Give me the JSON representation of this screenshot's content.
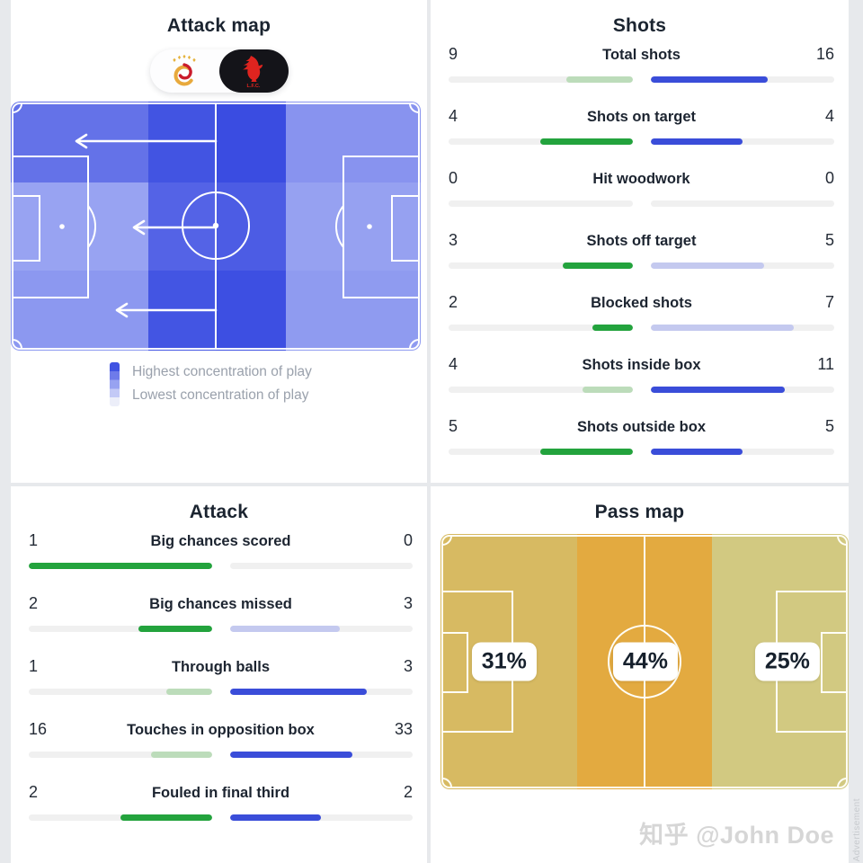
{
  "teams": {
    "home": "Galatasaray",
    "away": "Liverpool"
  },
  "colors": {
    "home_strong": "#23a33d",
    "home_light": "#bcdcba",
    "away_strong": "#3a4dd9",
    "away_light": "#c4c9ef",
    "track": "#f0f0f0",
    "heat_high": "#4053e2"
  },
  "attack_map": {
    "title": "Attack map",
    "legend": {
      "high": "Highest concentration of play",
      "low": "Lowest concentration of play"
    },
    "heatmap_colors": [
      [
        "#6472e8",
        "#4254e2",
        "#3a4ce1",
        "#8893ef"
      ],
      [
        "#98a3f2",
        "#5463e6",
        "#4c5ce4",
        "#96a1f1"
      ],
      [
        "#8c98f0",
        "#4355e3",
        "#3d4fe2",
        "#8f9bf0"
      ]
    ]
  },
  "shots": {
    "title": "Shots",
    "rows": [
      {
        "label": "Total shots",
        "home": {
          "value": "9",
          "pct": 36,
          "style": "light"
        },
        "away": {
          "value": "16",
          "pct": 64,
          "style": "strong"
        }
      },
      {
        "label": "Shots on target",
        "home": {
          "value": "4",
          "pct": 50,
          "style": "strong"
        },
        "away": {
          "value": "4",
          "pct": 50,
          "style": "strong"
        }
      },
      {
        "label": "Hit woodwork",
        "home": {
          "value": "0",
          "pct": 0,
          "style": "none"
        },
        "away": {
          "value": "0",
          "pct": 0,
          "style": "none"
        }
      },
      {
        "label": "Shots off target",
        "home": {
          "value": "3",
          "pct": 38,
          "style": "strong"
        },
        "away": {
          "value": "5",
          "pct": 62,
          "style": "light"
        }
      },
      {
        "label": "Blocked shots",
        "home": {
          "value": "2",
          "pct": 22,
          "style": "strong"
        },
        "away": {
          "value": "7",
          "pct": 78,
          "style": "light"
        }
      },
      {
        "label": "Shots inside box",
        "home": {
          "value": "4",
          "pct": 27,
          "style": "light"
        },
        "away": {
          "value": "11",
          "pct": 73,
          "style": "strong"
        }
      },
      {
        "label": "Shots outside box",
        "home": {
          "value": "5",
          "pct": 50,
          "style": "strong"
        },
        "away": {
          "value": "5",
          "pct": 50,
          "style": "strong"
        }
      }
    ]
  },
  "attack": {
    "title": "Attack",
    "rows": [
      {
        "label": "Big chances scored",
        "home": {
          "value": "1",
          "pct": 100,
          "style": "strong"
        },
        "away": {
          "value": "0",
          "pct": 0,
          "style": "none"
        }
      },
      {
        "label": "Big chances missed",
        "home": {
          "value": "2",
          "pct": 40,
          "style": "strong"
        },
        "away": {
          "value": "3",
          "pct": 60,
          "style": "light"
        }
      },
      {
        "label": "Through balls",
        "home": {
          "value": "1",
          "pct": 25,
          "style": "light"
        },
        "away": {
          "value": "3",
          "pct": 75,
          "style": "strong"
        }
      },
      {
        "label": "Touches in opposition box",
        "home": {
          "value": "16",
          "pct": 33,
          "style": "light"
        },
        "away": {
          "value": "33",
          "pct": 67,
          "style": "strong"
        }
      },
      {
        "label": "Fouled in final third",
        "home": {
          "value": "2",
          "pct": 50,
          "style": "strong"
        },
        "away": {
          "value": "2",
          "pct": 50,
          "style": "strong"
        }
      }
    ]
  },
  "pass_map": {
    "title": "Pass map",
    "zones": [
      {
        "pct": "31%",
        "color": "#d7ba62"
      },
      {
        "pct": "44%",
        "color": "#e3aa40"
      },
      {
        "pct": "25%",
        "color": "#d2c981"
      }
    ]
  },
  "watermark": "知乎 @John Doe",
  "side_label": "Advertisement"
}
